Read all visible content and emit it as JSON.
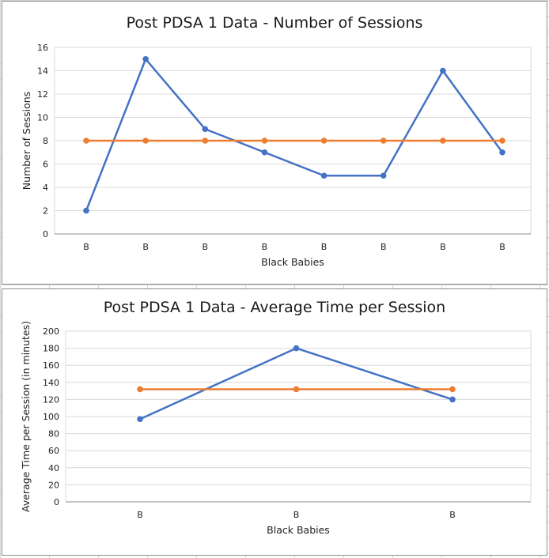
{
  "chart_data": [
    {
      "type": "line",
      "title": "Post PDSA 1 Data - Number of Sessions",
      "xlabel": "Black Babies",
      "ylabel": "Number of Sessions",
      "categories": [
        "B",
        "B",
        "B",
        "B",
        "B",
        "B",
        "B",
        "B"
      ],
      "ylim": [
        0,
        16
      ],
      "yticks": [
        0,
        2,
        4,
        6,
        8,
        10,
        12,
        14,
        16
      ],
      "grid": true,
      "legend": "none",
      "series": [
        {
          "values": [
            2,
            15,
            9,
            7,
            5,
            5,
            14,
            7
          ],
          "color": "#4472C4"
        },
        {
          "values": [
            8,
            8,
            8,
            8,
            8,
            8,
            8,
            8
          ],
          "color": "#ED7D31"
        }
      ]
    },
    {
      "type": "line",
      "title": "Post PDSA 1 Data - Average Time per Session",
      "xlabel": "Black Babies",
      "ylabel": "Average Time per Session (in minutes)",
      "categories": [
        "B",
        "B",
        "B"
      ],
      "ylim": [
        0,
        200
      ],
      "yticks": [
        0,
        20,
        40,
        60,
        80,
        100,
        120,
        140,
        160,
        180,
        200
      ],
      "grid": true,
      "legend": "none",
      "series": [
        {
          "values": [
            97,
            180,
            120
          ],
          "color": "#4472C4"
        },
        {
          "values": [
            132,
            132,
            132
          ],
          "color": "#ED7D31"
        }
      ]
    }
  ]
}
